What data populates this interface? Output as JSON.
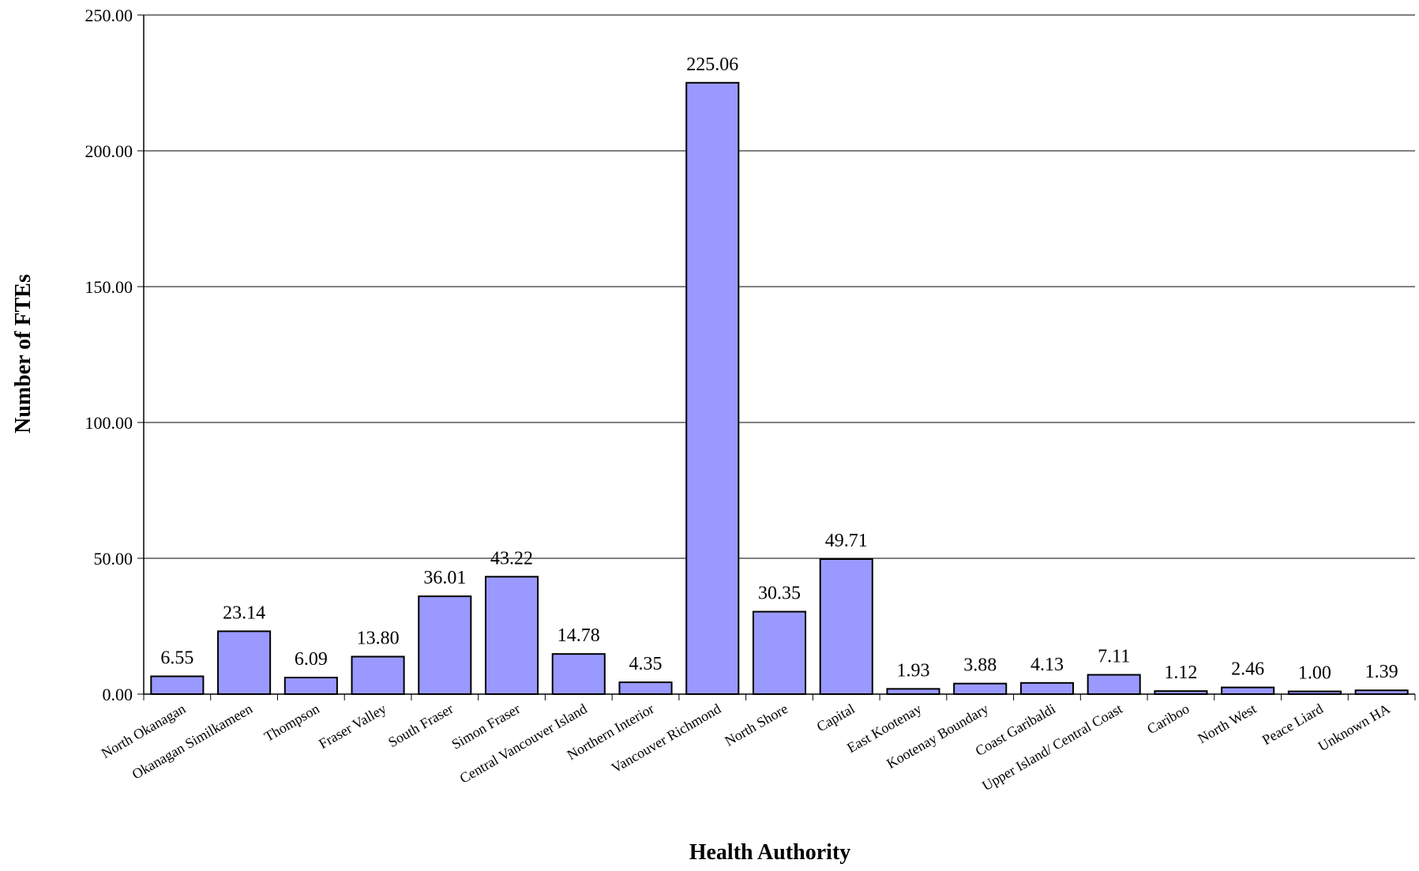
{
  "chart_data": {
    "type": "bar",
    "title": "",
    "xlabel": "Health Authority",
    "ylabel": "Number of FTEs",
    "ylim": [
      0,
      250
    ],
    "yticks": [
      "0.00",
      "50.00",
      "100.00",
      "150.00",
      "200.00",
      "250.00"
    ],
    "grid": true,
    "legend": "none",
    "bar_color": "#9999ff",
    "categories": [
      "North Okanagan",
      "Okanagan Similkameen",
      "Thompson",
      "Fraser Valley",
      "South Fraser",
      "Simon Fraser",
      "Central Vancouver Island",
      "Northern Interior",
      "Vancouver Richmond",
      "North Shore",
      "Capital",
      "East Kootenay",
      "Kootenay Boundary",
      "Coast Garibaldi",
      "Upper Island/ Central Coast",
      "Cariboo",
      "North West",
      "Peace Liard",
      "Unknown HA"
    ],
    "values": [
      6.55,
      23.14,
      6.09,
      13.8,
      36.01,
      43.22,
      14.78,
      4.35,
      225.06,
      30.35,
      49.71,
      1.93,
      3.88,
      4.13,
      7.11,
      1.12,
      2.46,
      1.0,
      1.39
    ],
    "value_labels": [
      "6.55",
      "23.14",
      "6.09",
      "13.80",
      "36.01",
      "43.22",
      "14.78",
      "4.35",
      "225.06",
      "30.35",
      "49.71",
      "1.93",
      "3.88",
      "4.13",
      "7.11",
      "1.12",
      "2.46",
      "1.00",
      "1.39"
    ]
  }
}
